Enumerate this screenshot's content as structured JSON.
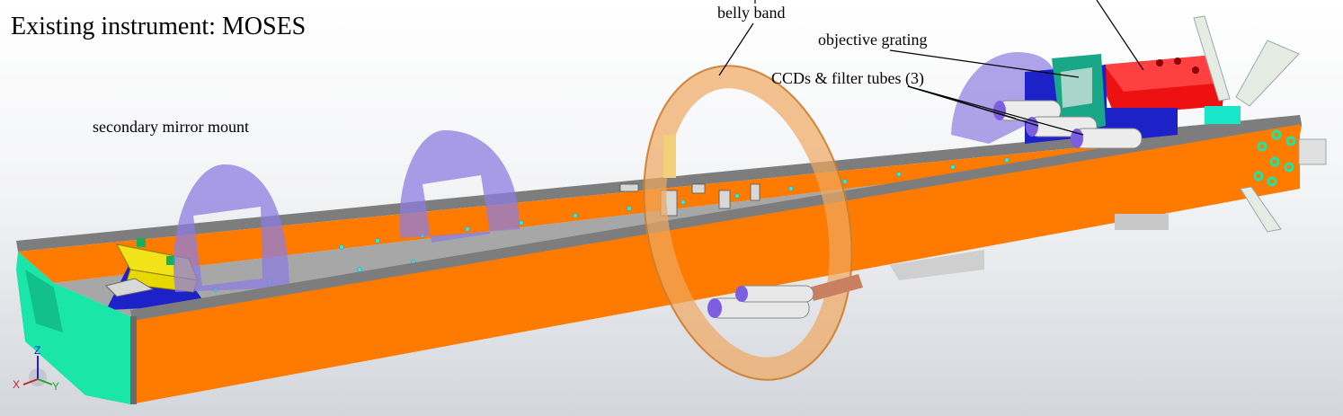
{
  "title": "Existing instrument: MOSES",
  "labels": {
    "belly_band": "belly band",
    "objective_grating": "objective grating",
    "ccds_filter_tubes": "CCDs & filter tubes (3)",
    "secondary_mirror_mount": "secondary mirror mount"
  },
  "axis_triad": {
    "z": "Z",
    "x": "X",
    "y": "Y"
  },
  "colors": {
    "rail_orange": "#ff7b00",
    "rail_gray": "#7d7d7d",
    "deck_gray": "#a6a6a6",
    "baffle_purple": "#8d7ce0",
    "belly_band": "#f0a860",
    "end_cap_teal": "#19e6a8",
    "electronics_red": "#ee1111",
    "mount_yellow": "#f2e21a",
    "mount_blue": "#1d22c8",
    "grating_mount_teal": "#18a888"
  }
}
